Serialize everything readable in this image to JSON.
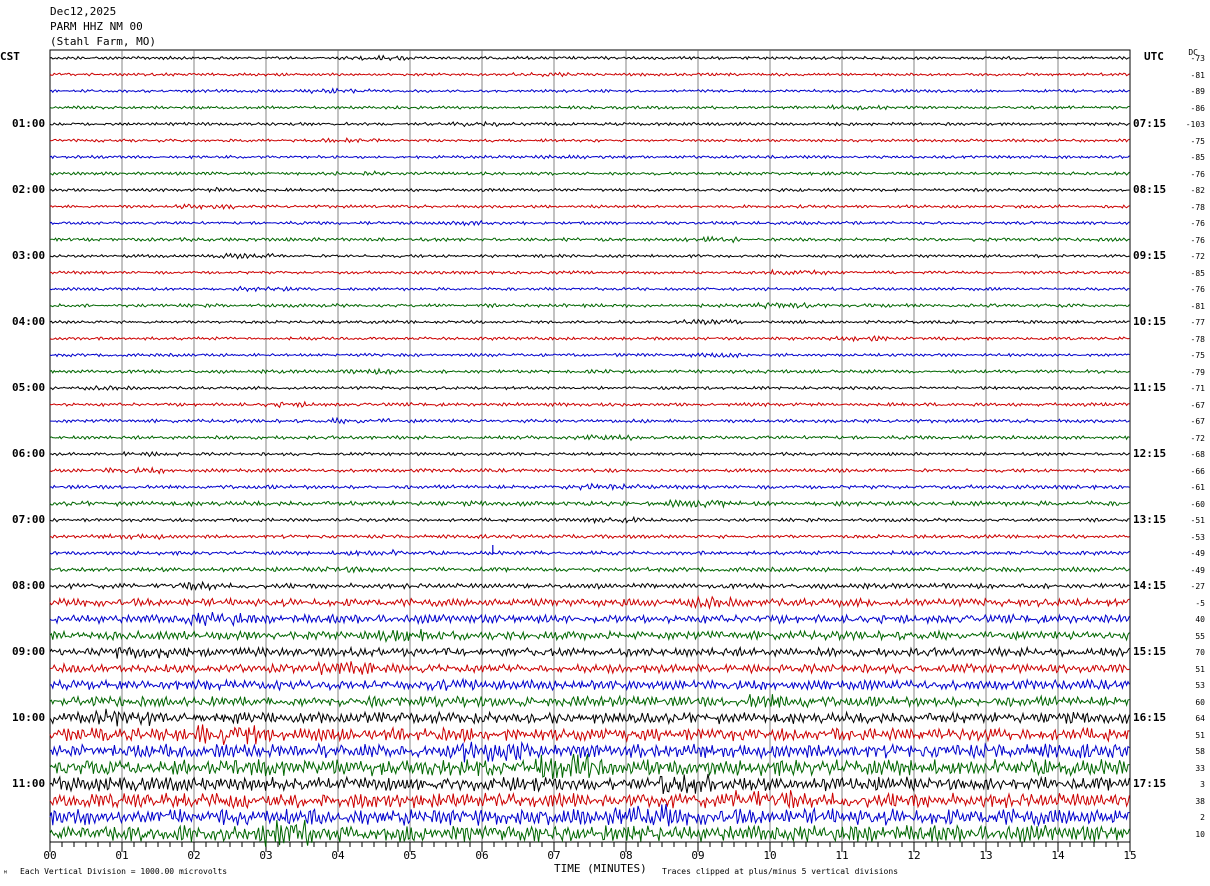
{
  "header": {
    "date": "Dec12,2025",
    "station": "PARM HHZ NM 00",
    "location": "(Stahl Farm, MO)"
  },
  "left_timezone": "CST",
  "right_timezone": "UTC",
  "dc_header": "DC",
  "footer": {
    "scale_note": "Each Vertical Division = 1000.00 microvolts",
    "clip_note": "Traces clipped at plus/minus 5 vertical divisions",
    "corner_mark": "ᴹ"
  },
  "colors": {
    "trace_cycle": [
      "#000000",
      "#cc0000",
      "#0000cc",
      "#006600"
    ],
    "grid": "#000000",
    "background": "#ffffff"
  },
  "chart_data": {
    "type": "line",
    "description_kind": "helicorder",
    "x_title": "TIME (MINUTES)",
    "x_ticks": [
      "00",
      "01",
      "02",
      "03",
      "04",
      "05",
      "06",
      "07",
      "08",
      "09",
      "10",
      "11",
      "12",
      "13",
      "14",
      "15"
    ],
    "xlim": [
      0,
      15
    ],
    "left_hour_labels": [
      "01:00",
      "02:00",
      "03:00",
      "04:00",
      "05:00",
      "06:00",
      "07:00",
      "08:00",
      "09:00",
      "10:00",
      "11:00"
    ],
    "right_hour_labels": [
      "07:15",
      "08:15",
      "09:15",
      "10:15",
      "11:15",
      "12:15",
      "13:15",
      "14:15",
      "15:15",
      "16:15",
      "17:15"
    ],
    "dc_offsets": [
      -73,
      -81,
      -89,
      -86,
      -103,
      -75,
      -85,
      -76,
      -82,
      -78,
      -76,
      -76,
      -72,
      -85,
      -76,
      -81,
      -77,
      -78,
      -75,
      -79,
      -71,
      -67,
      -67,
      -72,
      -68,
      -66,
      -61,
      -60,
      -51,
      -53,
      -49,
      -49,
      -27,
      -5,
      40,
      55,
      70,
      51,
      53,
      60,
      64,
      51,
      58,
      33,
      3,
      38,
      2,
      10
    ],
    "trace_amplitude_divisions": [
      0.35,
      0.33,
      0.33,
      0.35,
      0.35,
      0.33,
      0.33,
      0.35,
      0.35,
      0.35,
      0.35,
      0.4,
      0.35,
      0.35,
      0.35,
      0.4,
      0.35,
      0.35,
      0.35,
      0.4,
      0.35,
      0.4,
      0.4,
      0.4,
      0.35,
      0.4,
      0.45,
      0.55,
      0.4,
      0.4,
      0.45,
      0.5,
      0.6,
      0.9,
      1.0,
      1.0,
      1.0,
      1.0,
      1.1,
      1.2,
      1.3,
      1.5,
      1.6,
      1.9,
      1.6,
      1.7,
      1.9,
      1.9
    ],
    "events": [
      {
        "trace": 30,
        "minute": 6.15,
        "note": "spike"
      }
    ]
  }
}
